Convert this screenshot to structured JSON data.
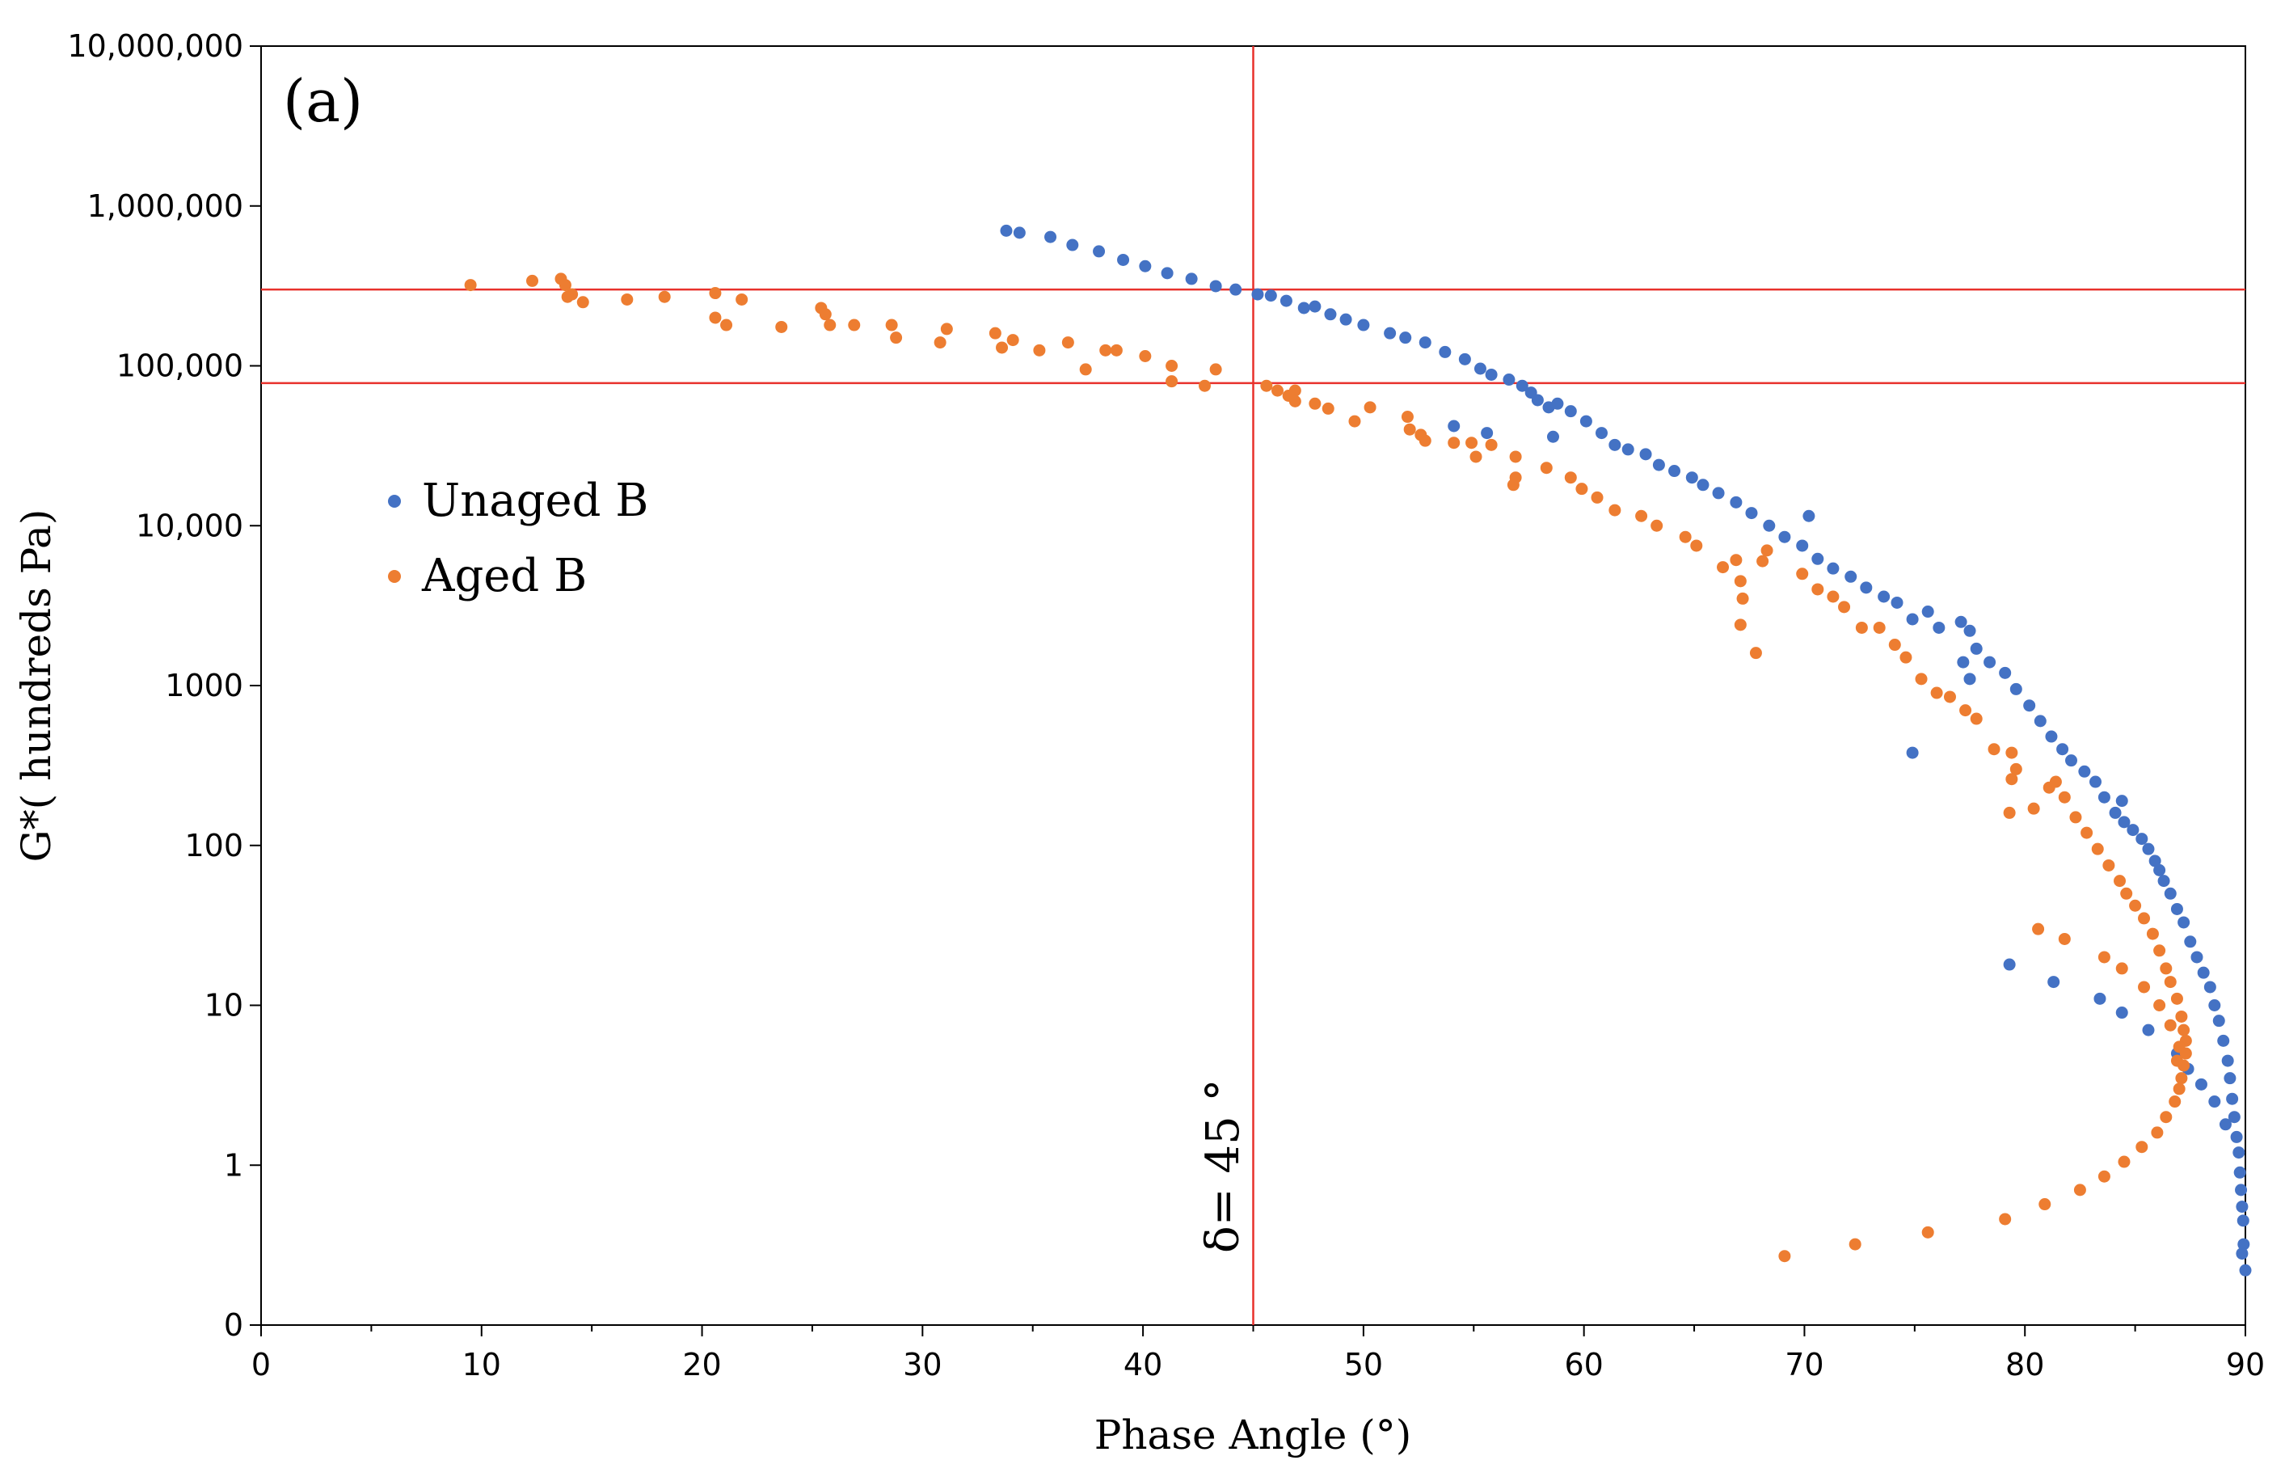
{
  "chart_data": {
    "type": "scatter",
    "title": "",
    "panel_label": "(a)",
    "xlabel": "Phase Angle (°)",
    "ylabel": "G*( hundreds Pa)",
    "xlim": [
      0,
      90
    ],
    "x_ticks": [
      "0",
      "10",
      "20",
      "30",
      "40",
      "50",
      "60",
      "70",
      "80",
      "90"
    ],
    "y_ticks": [
      "0",
      "1",
      "10",
      "100",
      "1000",
      "10,000",
      "100,000",
      "1,000,000",
      "10,000,000"
    ],
    "y_scale": "log-with-zero-floor",
    "y_tick_values": [
      0.1,
      1,
      10,
      100,
      1000,
      10000,
      100000,
      1000000,
      10000000
    ],
    "legend_position": "middle-left",
    "reference_lines": {
      "vertical_x": 45,
      "horizontal_y": [
        300000,
        78000
      ],
      "color": "#e8312c"
    },
    "annotation": "δ= 45 °",
    "series": [
      {
        "name": "Unaged B",
        "color": "#4472c4",
        "points": [
          [
            33.8,
            700000
          ],
          [
            34.4,
            680000
          ],
          [
            35.8,
            640000
          ],
          [
            36.8,
            570000
          ],
          [
            38,
            520000
          ],
          [
            39.1,
            460000
          ],
          [
            40.1,
            420000
          ],
          [
            41.1,
            380000
          ],
          [
            42.2,
            350000
          ],
          [
            43.3,
            315000
          ],
          [
            44.2,
            300000
          ],
          [
            45.2,
            280000
          ],
          [
            45.8,
            275000
          ],
          [
            46.5,
            255000
          ],
          [
            47.3,
            230000
          ],
          [
            47.8,
            235000
          ],
          [
            48.5,
            210000
          ],
          [
            49.2,
            195000
          ],
          [
            50,
            180000
          ],
          [
            51.2,
            160000
          ],
          [
            51.9,
            150000
          ],
          [
            52.8,
            140000
          ],
          [
            53.7,
            122000
          ],
          [
            54.6,
            110000
          ],
          [
            55.3,
            96000
          ],
          [
            55.8,
            88000
          ],
          [
            56.6,
            82000
          ],
          [
            57.2,
            75000
          ],
          [
            57.6,
            68000
          ],
          [
            57.9,
            61000
          ],
          [
            58.4,
            55000
          ],
          [
            58.8,
            58000
          ],
          [
            58.6,
            36000
          ],
          [
            54.1,
            42000
          ],
          [
            55.6,
            38000
          ],
          [
            59.4,
            52000
          ],
          [
            60.1,
            45000
          ],
          [
            60.8,
            38000
          ],
          [
            61.4,
            32000
          ],
          [
            62,
            30000
          ],
          [
            62.8,
            28000
          ],
          [
            63.4,
            24000
          ],
          [
            64.1,
            22000
          ],
          [
            64.9,
            20000
          ],
          [
            65.4,
            18000
          ],
          [
            66.1,
            16000
          ],
          [
            66.9,
            14000
          ],
          [
            67.6,
            12000
          ],
          [
            68.4,
            10000
          ],
          [
            69.1,
            8500
          ],
          [
            70.2,
            11500
          ],
          [
            69.9,
            7500
          ],
          [
            70.6,
            6200
          ],
          [
            71.3,
            5400
          ],
          [
            72.1,
            4800
          ],
          [
            72.8,
            4100
          ],
          [
            73.6,
            3600
          ],
          [
            74.2,
            3300
          ],
          [
            74.9,
            2600
          ],
          [
            75.6,
            2900
          ],
          [
            76.1,
            2300
          ],
          [
            77.1,
            2500
          ],
          [
            77.5,
            2200
          ],
          [
            77.8,
            1700
          ],
          [
            77.2,
            1400
          ],
          [
            77.5,
            1100
          ],
          [
            78.4,
            1400
          ],
          [
            79.1,
            1200
          ],
          [
            79.6,
            950
          ],
          [
            80.2,
            750
          ],
          [
            80.7,
            600
          ],
          [
            81.2,
            480
          ],
          [
            81.7,
            400
          ],
          [
            82.1,
            340
          ],
          [
            82.7,
            290
          ],
          [
            83.2,
            250
          ],
          [
            83.6,
            200
          ],
          [
            84.1,
            160
          ],
          [
            84.4,
            190
          ],
          [
            84.5,
            140
          ],
          [
            84.9,
            125
          ],
          [
            85.3,
            110
          ],
          [
            85.6,
            95
          ],
          [
            85.9,
            80
          ],
          [
            86.1,
            70
          ],
          [
            86.3,
            60
          ],
          [
            86.6,
            50
          ],
          [
            86.9,
            40
          ],
          [
            87.2,
            33
          ],
          [
            87.5,
            25
          ],
          [
            87.8,
            20
          ],
          [
            88.1,
            16
          ],
          [
            88.4,
            13
          ],
          [
            88.6,
            10
          ],
          [
            88.8,
            8
          ],
          [
            89,
            6
          ],
          [
            89.2,
            4.5
          ],
          [
            89.3,
            3.5
          ],
          [
            89.4,
            2.6
          ],
          [
            89.5,
            2
          ],
          [
            89.6,
            1.5
          ],
          [
            89.7,
            1.2
          ],
          [
            89.75,
            0.9
          ],
          [
            89.8,
            0.7
          ],
          [
            89.85,
            0.55
          ],
          [
            89.9,
            0.45
          ],
          [
            89.92,
            0.32
          ],
          [
            90,
            0.22
          ],
          [
            89.85,
            0.28
          ],
          [
            74.9,
            380
          ],
          [
            79.3,
            18
          ],
          [
            81.3,
            14
          ],
          [
            83.4,
            11
          ],
          [
            84.4,
            9
          ],
          [
            85.6,
            7
          ],
          [
            86.9,
            5
          ],
          [
            87.4,
            4
          ],
          [
            88,
            3.2
          ],
          [
            88.6,
            2.5
          ],
          [
            89.1,
            1.8
          ]
        ]
      },
      {
        "name": "Aged B",
        "color": "#ed7d31",
        "points": [
          [
            9.5,
            320000
          ],
          [
            12.3,
            340000
          ],
          [
            13.6,
            350000
          ],
          [
            13.8,
            320000
          ],
          [
            14.1,
            280000
          ],
          [
            13.9,
            270000
          ],
          [
            14.6,
            250000
          ],
          [
            16.6,
            260000
          ],
          [
            18.3,
            270000
          ],
          [
            20.6,
            285000
          ],
          [
            21.8,
            260000
          ],
          [
            20.6,
            200000
          ],
          [
            21.1,
            180000
          ],
          [
            23.6,
            175000
          ],
          [
            25.4,
            230000
          ],
          [
            25.6,
            210000
          ],
          [
            25.8,
            180000
          ],
          [
            26.9,
            180000
          ],
          [
            28.6,
            180000
          ],
          [
            28.8,
            150000
          ],
          [
            31.1,
            170000
          ],
          [
            30.8,
            140000
          ],
          [
            33.3,
            160000
          ],
          [
            33.6,
            130000
          ],
          [
            34.1,
            145000
          ],
          [
            35.3,
            125000
          ],
          [
            36.6,
            140000
          ],
          [
            37.4,
            95000
          ],
          [
            38.3,
            125000
          ],
          [
            38.8,
            125000
          ],
          [
            40.1,
            115000
          ],
          [
            41.3,
            100000
          ],
          [
            41.3,
            80000
          ],
          [
            42.8,
            75000
          ],
          [
            43.3,
            95000
          ],
          [
            45.6,
            75000
          ],
          [
            46.1,
            70000
          ],
          [
            46.6,
            65000
          ],
          [
            46.9,
            70000
          ],
          [
            46.9,
            60000
          ],
          [
            47.8,
            58000
          ],
          [
            48.4,
            54000
          ],
          [
            49.6,
            45000
          ],
          [
            50.3,
            55000
          ],
          [
            52,
            48000
          ],
          [
            52.1,
            40000
          ],
          [
            52.6,
            37000
          ],
          [
            52.8,
            34000
          ],
          [
            54.1,
            33000
          ],
          [
            54.9,
            33000
          ],
          [
            55.1,
            27000
          ],
          [
            55.8,
            32000
          ],
          [
            56.9,
            27000
          ],
          [
            56.9,
            20000
          ],
          [
            56.8,
            18000
          ],
          [
            58.3,
            23000
          ],
          [
            59.4,
            20000
          ],
          [
            59.9,
            17000
          ],
          [
            60.6,
            15000
          ],
          [
            61.4,
            12500
          ],
          [
            62.6,
            11500
          ],
          [
            63.3,
            10000
          ],
          [
            64.6,
            8500
          ],
          [
            65.1,
            7500
          ],
          [
            66.3,
            5500
          ],
          [
            66.9,
            6100
          ],
          [
            67.1,
            4500
          ],
          [
            67.2,
            3500
          ],
          [
            67.1,
            2400
          ],
          [
            67.8,
            1600
          ],
          [
            68.1,
            6000
          ],
          [
            68.3,
            7000
          ],
          [
            69.9,
            5000
          ],
          [
            70.6,
            4000
          ],
          [
            71.3,
            3600
          ],
          [
            71.8,
            3100
          ],
          [
            72.6,
            2300
          ],
          [
            73.4,
            2300
          ],
          [
            74.1,
            1800
          ],
          [
            74.6,
            1500
          ],
          [
            75.3,
            1100
          ],
          [
            76,
            900
          ],
          [
            76.6,
            850
          ],
          [
            77.3,
            700
          ],
          [
            77.8,
            620
          ],
          [
            78.6,
            400
          ],
          [
            79.4,
            380
          ],
          [
            79.6,
            300
          ],
          [
            79.4,
            260
          ],
          [
            79.3,
            160
          ],
          [
            80.4,
            170
          ],
          [
            81.1,
            230
          ],
          [
            81.4,
            250
          ],
          [
            81.8,
            200
          ],
          [
            82.3,
            150
          ],
          [
            82.8,
            120
          ],
          [
            83.3,
            95
          ],
          [
            83.8,
            75
          ],
          [
            84.3,
            60
          ],
          [
            84.6,
            50
          ],
          [
            85,
            42
          ],
          [
            85.4,
            35
          ],
          [
            85.8,
            28
          ],
          [
            86.1,
            22
          ],
          [
            86.4,
            17
          ],
          [
            86.6,
            14
          ],
          [
            86.9,
            11
          ],
          [
            87.1,
            8.5
          ],
          [
            87.2,
            7
          ],
          [
            87.3,
            6
          ],
          [
            87.3,
            5
          ],
          [
            87.2,
            4.2
          ],
          [
            87.1,
            3.5
          ],
          [
            87,
            3
          ],
          [
            86.8,
            2.5
          ],
          [
            86.4,
            2
          ],
          [
            86,
            1.6
          ],
          [
            85.3,
            1.3
          ],
          [
            84.5,
            1.05
          ],
          [
            83.6,
            0.85
          ],
          [
            82.5,
            0.7
          ],
          [
            80.9,
            0.57
          ],
          [
            79.1,
            0.46
          ],
          [
            75.6,
            0.38
          ],
          [
            72.3,
            0.32
          ],
          [
            69.1,
            0.27
          ],
          [
            80.6,
            30
          ],
          [
            81.8,
            26
          ],
          [
            83.6,
            20
          ],
          [
            84.4,
            17
          ],
          [
            85.4,
            13
          ],
          [
            86.1,
            10
          ],
          [
            86.6,
            7.5
          ],
          [
            87,
            5.5
          ],
          [
            86.9,
            4.5
          ]
        ]
      }
    ]
  }
}
